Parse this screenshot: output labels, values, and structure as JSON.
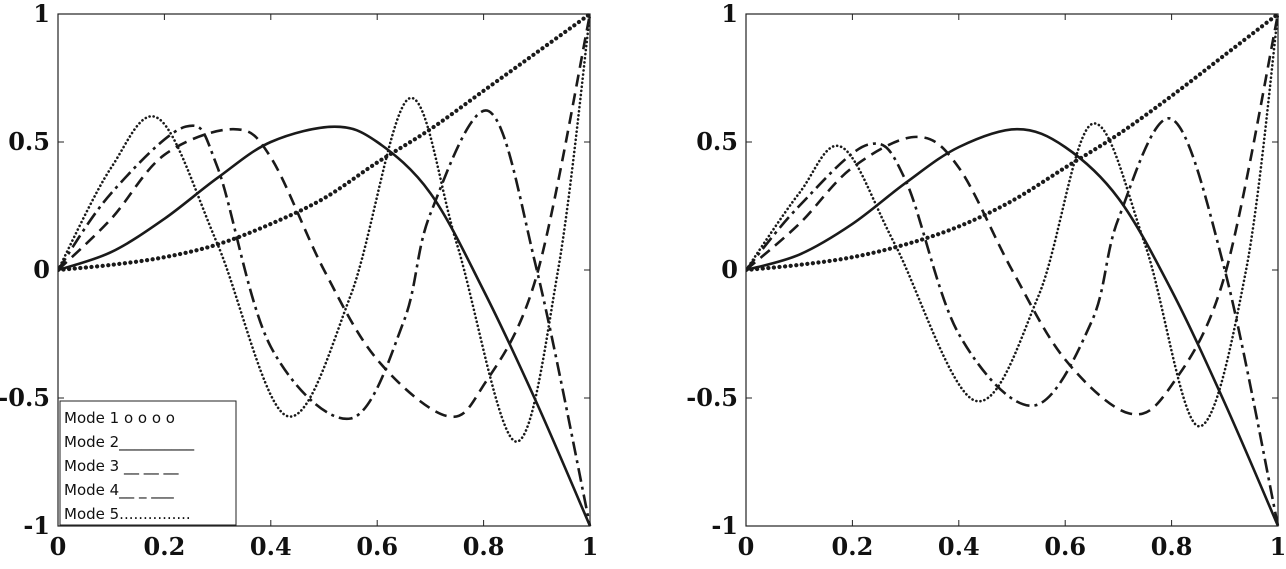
{
  "chart_data": [
    {
      "type": "line",
      "xlim": [
        0,
        1
      ],
      "ylim": [
        -1,
        1
      ],
      "xticks": [
        "0",
        "0.2",
        "0.4",
        "0.6",
        "0.8",
        "1"
      ],
      "yticks": [
        "-1",
        "-0.5",
        "0",
        "0.5",
        "1"
      ],
      "grid": false,
      "legend_position": "bottom-left",
      "series": [
        {
          "name": "Mode 1 o o o o",
          "style": "dotted-heavy",
          "points": [
            [
              0,
              0
            ],
            [
              0.1,
              0.02
            ],
            [
              0.2,
              0.05
            ],
            [
              0.3,
              0.1
            ],
            [
              0.4,
              0.18
            ],
            [
              0.5,
              0.28
            ],
            [
              0.6,
              0.42
            ],
            [
              0.7,
              0.55
            ],
            [
              0.8,
              0.7
            ],
            [
              0.9,
              0.85
            ],
            [
              1,
              1
            ]
          ]
        },
        {
          "name": "Mode 2__________",
          "style": "solid",
          "points": [
            [
              0,
              0
            ],
            [
              0.1,
              0.07
            ],
            [
              0.2,
              0.2
            ],
            [
              0.3,
              0.36
            ],
            [
              0.4,
              0.5
            ],
            [
              0.52,
              0.56
            ],
            [
              0.6,
              0.5
            ],
            [
              0.7,
              0.3
            ],
            [
              0.8,
              -0.08
            ],
            [
              0.9,
              -0.52
            ],
            [
              1,
              -1
            ]
          ]
        },
        {
          "name": "Mode 3 __ __ __",
          "style": "dashed",
          "points": [
            [
              0,
              0
            ],
            [
              0.1,
              0.2
            ],
            [
              0.2,
              0.45
            ],
            [
              0.33,
              0.55
            ],
            [
              0.4,
              0.44
            ],
            [
              0.5,
              0.0
            ],
            [
              0.6,
              -0.35
            ],
            [
              0.73,
              -0.57
            ],
            [
              0.8,
              -0.45
            ],
            [
              0.9,
              -0.02
            ],
            [
              1,
              1
            ]
          ]
        },
        {
          "name": "Mode 4__ _ ___",
          "style": "dash-dot",
          "points": [
            [
              0,
              0
            ],
            [
              0.1,
              0.3
            ],
            [
              0.24,
              0.56
            ],
            [
              0.3,
              0.4
            ],
            [
              0.4,
              -0.3
            ],
            [
              0.55,
              -0.58
            ],
            [
              0.65,
              -0.2
            ],
            [
              0.7,
              0.22
            ],
            [
              0.81,
              0.62
            ],
            [
              0.9,
              0.0
            ],
            [
              1,
              -1
            ]
          ]
        },
        {
          "name": "Mode 5...............",
          "style": "dotted",
          "points": [
            [
              0,
              0
            ],
            [
              0.1,
              0.4
            ],
            [
              0.19,
              0.59
            ],
            [
              0.3,
              0.1
            ],
            [
              0.43,
              -0.57
            ],
            [
              0.55,
              -0.1
            ],
            [
              0.66,
              0.67
            ],
            [
              0.75,
              0.1
            ],
            [
              0.86,
              -0.67
            ],
            [
              0.94,
              0.0
            ],
            [
              1,
              1
            ]
          ]
        }
      ]
    },
    {
      "type": "line",
      "xlim": [
        0,
        1
      ],
      "ylim": [
        -1,
        1
      ],
      "xticks": [
        "0",
        "0.2",
        "0.4",
        "0.6",
        "0.8",
        "1"
      ],
      "yticks": [
        "-1",
        "-0.5",
        "0",
        "0.5",
        "1"
      ],
      "grid": false,
      "series": [
        {
          "style": "dotted-heavy",
          "points": [
            [
              0,
              0
            ],
            [
              0.1,
              0.02
            ],
            [
              0.2,
              0.05
            ],
            [
              0.3,
              0.1
            ],
            [
              0.4,
              0.17
            ],
            [
              0.5,
              0.27
            ],
            [
              0.6,
              0.4
            ],
            [
              0.7,
              0.53
            ],
            [
              0.8,
              0.68
            ],
            [
              0.9,
              0.84
            ],
            [
              1,
              1
            ]
          ]
        },
        {
          "style": "solid",
          "points": [
            [
              0,
              0
            ],
            [
              0.1,
              0.06
            ],
            [
              0.2,
              0.18
            ],
            [
              0.3,
              0.34
            ],
            [
              0.4,
              0.48
            ],
            [
              0.51,
              0.55
            ],
            [
              0.6,
              0.48
            ],
            [
              0.7,
              0.28
            ],
            [
              0.8,
              -0.08
            ],
            [
              0.9,
              -0.52
            ],
            [
              1,
              -1
            ]
          ]
        },
        {
          "style": "dashed",
          "points": [
            [
              0,
              0
            ],
            [
              0.1,
              0.18
            ],
            [
              0.2,
              0.4
            ],
            [
              0.32,
              0.52
            ],
            [
              0.4,
              0.4
            ],
            [
              0.5,
              0.0
            ],
            [
              0.6,
              -0.35
            ],
            [
              0.72,
              -0.56
            ],
            [
              0.8,
              -0.45
            ],
            [
              0.9,
              -0.02
            ],
            [
              1,
              1
            ]
          ]
        },
        {
          "style": "dash-dot",
          "points": [
            [
              0,
              0
            ],
            [
              0.1,
              0.25
            ],
            [
              0.23,
              0.49
            ],
            [
              0.3,
              0.35
            ],
            [
              0.4,
              -0.25
            ],
            [
              0.54,
              -0.53
            ],
            [
              0.65,
              -0.2
            ],
            [
              0.7,
              0.2
            ],
            [
              0.8,
              0.59
            ],
            [
              0.9,
              0.0
            ],
            [
              1,
              -1
            ]
          ]
        },
        {
          "style": "dotted",
          "points": [
            [
              0,
              0
            ],
            [
              0.1,
              0.3
            ],
            [
              0.18,
              0.48
            ],
            [
              0.28,
              0.1
            ],
            [
              0.43,
              -0.51
            ],
            [
              0.55,
              -0.1
            ],
            [
              0.65,
              0.57
            ],
            [
              0.75,
              0.1
            ],
            [
              0.85,
              -0.61
            ],
            [
              0.94,
              0.0
            ],
            [
              1,
              1
            ]
          ]
        }
      ]
    }
  ]
}
